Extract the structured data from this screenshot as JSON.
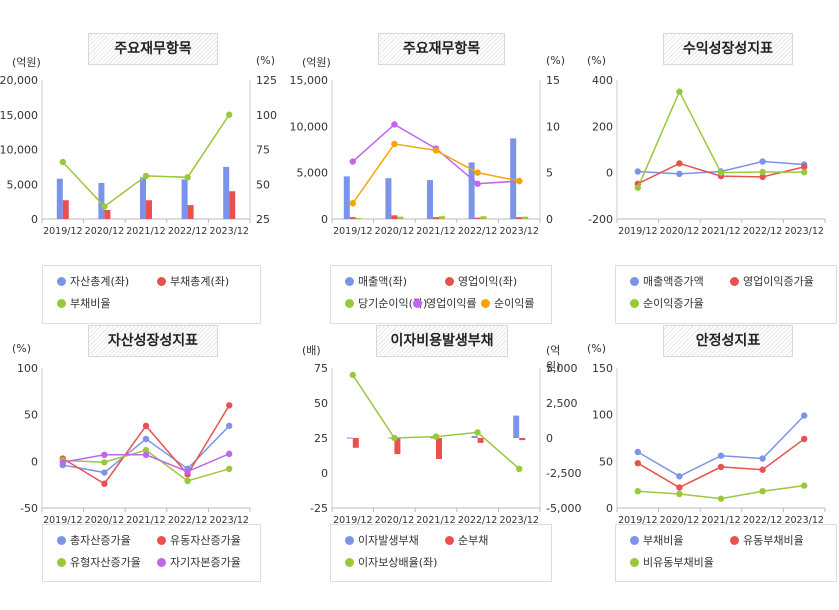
{
  "colors": {
    "blue": "#7b93e8",
    "red": "#e8524e",
    "green": "#9ac83c",
    "purple": "#c066ec",
    "orange": "#f5a40c"
  },
  "chart_data": [
    {
      "type": "bar",
      "title": "주요재무항목",
      "unit_left": "(억원)",
      "unit_right": "(%)",
      "categories": [
        "2019/12",
        "2020/12",
        "2021/12",
        "2022/12",
        "2023/12"
      ],
      "ylim": [
        0,
        20000
      ],
      "yticks": [
        "20,000",
        "15,000",
        "10,000",
        "5,000",
        "0"
      ],
      "y2lim": [
        25,
        125
      ],
      "y2ticks": [
        "125",
        "100",
        "75",
        "50",
        "25"
      ],
      "series": [
        {
          "name": "자산총계(좌)",
          "kind": "bar",
          "axis": "left",
          "color": "blue",
          "values": [
            5800,
            5200,
            6000,
            5700,
            7500
          ]
        },
        {
          "name": "부채총계(좌)",
          "kind": "bar",
          "axis": "left",
          "color": "red",
          "values": [
            2700,
            1300,
            2700,
            2000,
            4000
          ]
        },
        {
          "name": "부채비율",
          "kind": "line",
          "axis": "right",
          "color": "green",
          "values": [
            66,
            34,
            56,
            55,
            100
          ]
        }
      ]
    },
    {
      "type": "bar",
      "title": "주요재무항목",
      "unit_left": "(억원)",
      "unit_right": "(%)",
      "categories": [
        "2019/12",
        "2020/12",
        "2021/12",
        "2022/12",
        "2023/12"
      ],
      "ylim": [
        0,
        15000
      ],
      "yticks": [
        "15,000",
        "10,000",
        "5,000",
        "0"
      ],
      "y2lim": [
        0,
        15
      ],
      "y2ticks": [
        "15",
        "10",
        "5",
        "0"
      ],
      "series": [
        {
          "name": "매출액(좌)",
          "kind": "bar",
          "axis": "left",
          "color": "blue",
          "values": [
            4600,
            4400,
            4200,
            6100,
            8700
          ]
        },
        {
          "name": "영업이익(좌)",
          "kind": "bar",
          "axis": "left",
          "color": "red",
          "values": [
            200,
            400,
            200,
            150,
            200
          ]
        },
        {
          "name": "당기순이익(좌)",
          "kind": "bar",
          "axis": "left",
          "color": "green",
          "values": [
            100,
            250,
            300,
            300,
            250
          ]
        },
        {
          "name": "영업이익률",
          "kind": "line",
          "axis": "right",
          "color": "purple",
          "values": [
            6.2,
            10.2,
            7.6,
            3.8,
            4.1
          ]
        },
        {
          "name": "순이익률",
          "kind": "line",
          "axis": "right",
          "color": "orange",
          "values": [
            1.7,
            8.1,
            7.4,
            5.0,
            4.1
          ]
        }
      ]
    },
    {
      "type": "line",
      "title": "수익성장성지표",
      "unit_left": "(%)",
      "categories": [
        "2019/12",
        "2020/12",
        "2021/12",
        "2022/12",
        "2023/12"
      ],
      "ylim": [
        -200,
        400
      ],
      "yticks": [
        "400",
        "200",
        "0",
        "-200"
      ],
      "series": [
        {
          "name": "매출액증가액",
          "kind": "line",
          "axis": "left",
          "color": "blue",
          "values": [
            5,
            -5,
            5,
            48,
            35
          ]
        },
        {
          "name": "영업이익증가율",
          "kind": "line",
          "axis": "left",
          "color": "red",
          "values": [
            -48,
            40,
            -15,
            -18,
            25
          ]
        },
        {
          "name": "순이익증가율",
          "kind": "line",
          "axis": "left",
          "color": "green",
          "values": [
            -65,
            350,
            0,
            3,
            2
          ]
        }
      ]
    },
    {
      "type": "line",
      "title": "자산성장성지표",
      "unit_left": "(%)",
      "categories": [
        "2019/12",
        "2020/12",
        "2021/12",
        "2022/12",
        "2023/12"
      ],
      "ylim": [
        -50,
        100
      ],
      "yticks": [
        "100",
        "50",
        "0",
        "-50"
      ],
      "series": [
        {
          "name": "총자산증가율",
          "kind": "line",
          "axis": "left",
          "color": "blue",
          "values": [
            -4,
            -12,
            24,
            -8,
            38
          ]
        },
        {
          "name": "유동자산증가율",
          "kind": "line",
          "axis": "left",
          "color": "red",
          "values": [
            3,
            -24,
            38,
            -14,
            60
          ]
        },
        {
          "name": "유형자산증가율",
          "kind": "line",
          "axis": "left",
          "color": "green",
          "values": [
            1,
            -1,
            12,
            -21,
            -8
          ]
        },
        {
          "name": "자기자본증가율",
          "kind": "line",
          "axis": "left",
          "color": "purple",
          "values": [
            -1,
            7,
            7,
            -11,
            8
          ]
        }
      ]
    },
    {
      "type": "bar",
      "title": "이자비용발생부채",
      "unit_left": "(배)",
      "unit_right": "(억원)",
      "categories": [
        "2019/12",
        "2020/12",
        "2021/12",
        "2022/12",
        "2023/12"
      ],
      "ylim": [
        -25,
        75
      ],
      "yticks": [
        "75",
        "50",
        "25",
        "0",
        "-25"
      ],
      "y2lim": [
        -5000,
        5000
      ],
      "y2ticks": [
        "5,000",
        "2,500",
        "0",
        "-2,500",
        "-5,000"
      ],
      "series": [
        {
          "name": "이자발생부채",
          "kind": "bar",
          "axis": "right",
          "color": "blue",
          "values": [
            30,
            30,
            40,
            150,
            1600
          ]
        },
        {
          "name": "순부채",
          "kind": "bar",
          "axis": "right",
          "color": "red",
          "values": [
            -700,
            -1150,
            -1500,
            -350,
            -150
          ]
        },
        {
          "name": "이자보상배율(좌)",
          "kind": "line",
          "axis": "left",
          "color": "green",
          "values": [
            70,
            25,
            26,
            29,
            3
          ]
        }
      ]
    },
    {
      "type": "line",
      "title": "안정성지표",
      "unit_left": "(%)",
      "categories": [
        "2019/12",
        "2020/12",
        "2021/12",
        "2022/12",
        "2023/12"
      ],
      "ylim": [
        0,
        150
      ],
      "yticks": [
        "150",
        "100",
        "50",
        "0"
      ],
      "series": [
        {
          "name": "부채비율",
          "kind": "line",
          "axis": "left",
          "color": "blue",
          "values": [
            60,
            34,
            56,
            53,
            99
          ]
        },
        {
          "name": "유동부채비율",
          "kind": "line",
          "axis": "left",
          "color": "red",
          "values": [
            48,
            22,
            44,
            41,
            74
          ]
        },
        {
          "name": "비유동부채비율",
          "kind": "line",
          "axis": "left",
          "color": "green",
          "values": [
            18,
            15,
            10,
            18,
            24
          ]
        }
      ]
    }
  ]
}
